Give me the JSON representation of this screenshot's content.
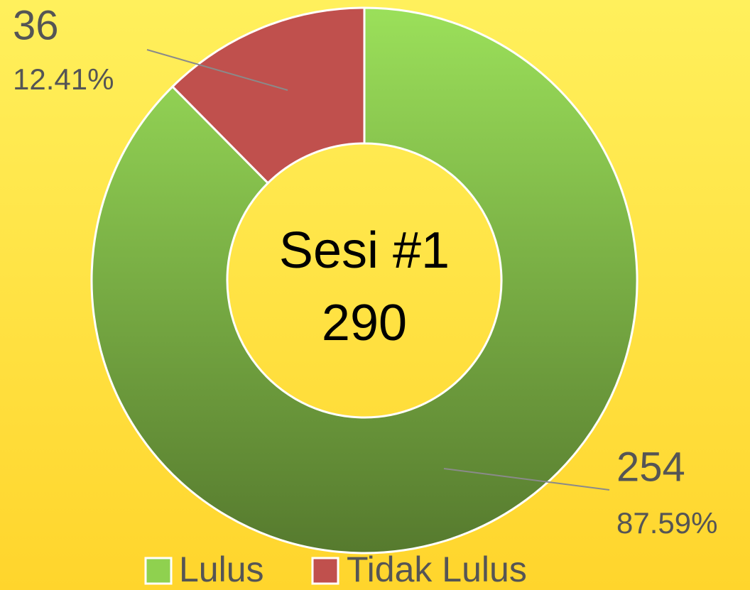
{
  "chart_data": {
    "type": "donut",
    "title": "Sesi #1",
    "total": 290,
    "categories": [
      "Lulus",
      "Tidak Lulus"
    ],
    "values": [
      254,
      36
    ],
    "percent_labels": [
      "87.59%",
      "12.41%"
    ],
    "colors": [
      "#8fd14f",
      "#c0504d"
    ]
  }
}
